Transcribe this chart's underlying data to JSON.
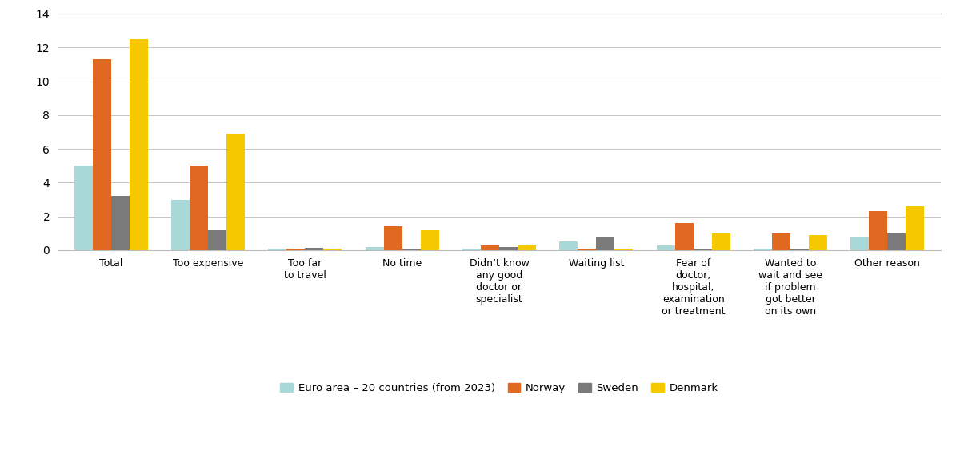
{
  "categories": [
    "Total",
    "Too expensive",
    "Too far\nto travel",
    "No time",
    "Didn’t know\nany good\ndoctor or\nspecialist",
    "Waiting list",
    "Fear of\ndoctor,\nhospital,\nexamination\nor treatment",
    "Wanted to\nwait and see\nif problem\ngot better\non its own",
    "Other reason"
  ],
  "series": {
    "Euro area – 20 countries (from 2023)": [
      5.0,
      3.0,
      0.1,
      0.2,
      0.1,
      0.5,
      0.3,
      0.1,
      0.8
    ],
    "Norway": [
      11.3,
      5.0,
      0.1,
      1.4,
      0.3,
      0.1,
      1.6,
      1.0,
      2.3
    ],
    "Sweden": [
      3.2,
      1.2,
      0.15,
      0.1,
      0.2,
      0.8,
      0.1,
      0.1,
      1.0
    ],
    "Denmark": [
      12.5,
      6.9,
      0.1,
      1.2,
      0.3,
      0.1,
      1.0,
      0.9,
      2.6
    ]
  },
  "colors": {
    "Euro area – 20 countries (from 2023)": "#a8d8d8",
    "Norway": "#e06820",
    "Sweden": "#7a7a7a",
    "Denmark": "#f5c800"
  },
  "ylim": [
    0,
    14
  ],
  "yticks": [
    0,
    2,
    4,
    6,
    8,
    10,
    12,
    14
  ],
  "bar_width": 0.19,
  "background_color": "#ffffff",
  "grid_color": "#bbbbbb",
  "legend_order": [
    "Euro area – 20 countries (from 2023)",
    "Norway",
    "Sweden",
    "Denmark"
  ]
}
